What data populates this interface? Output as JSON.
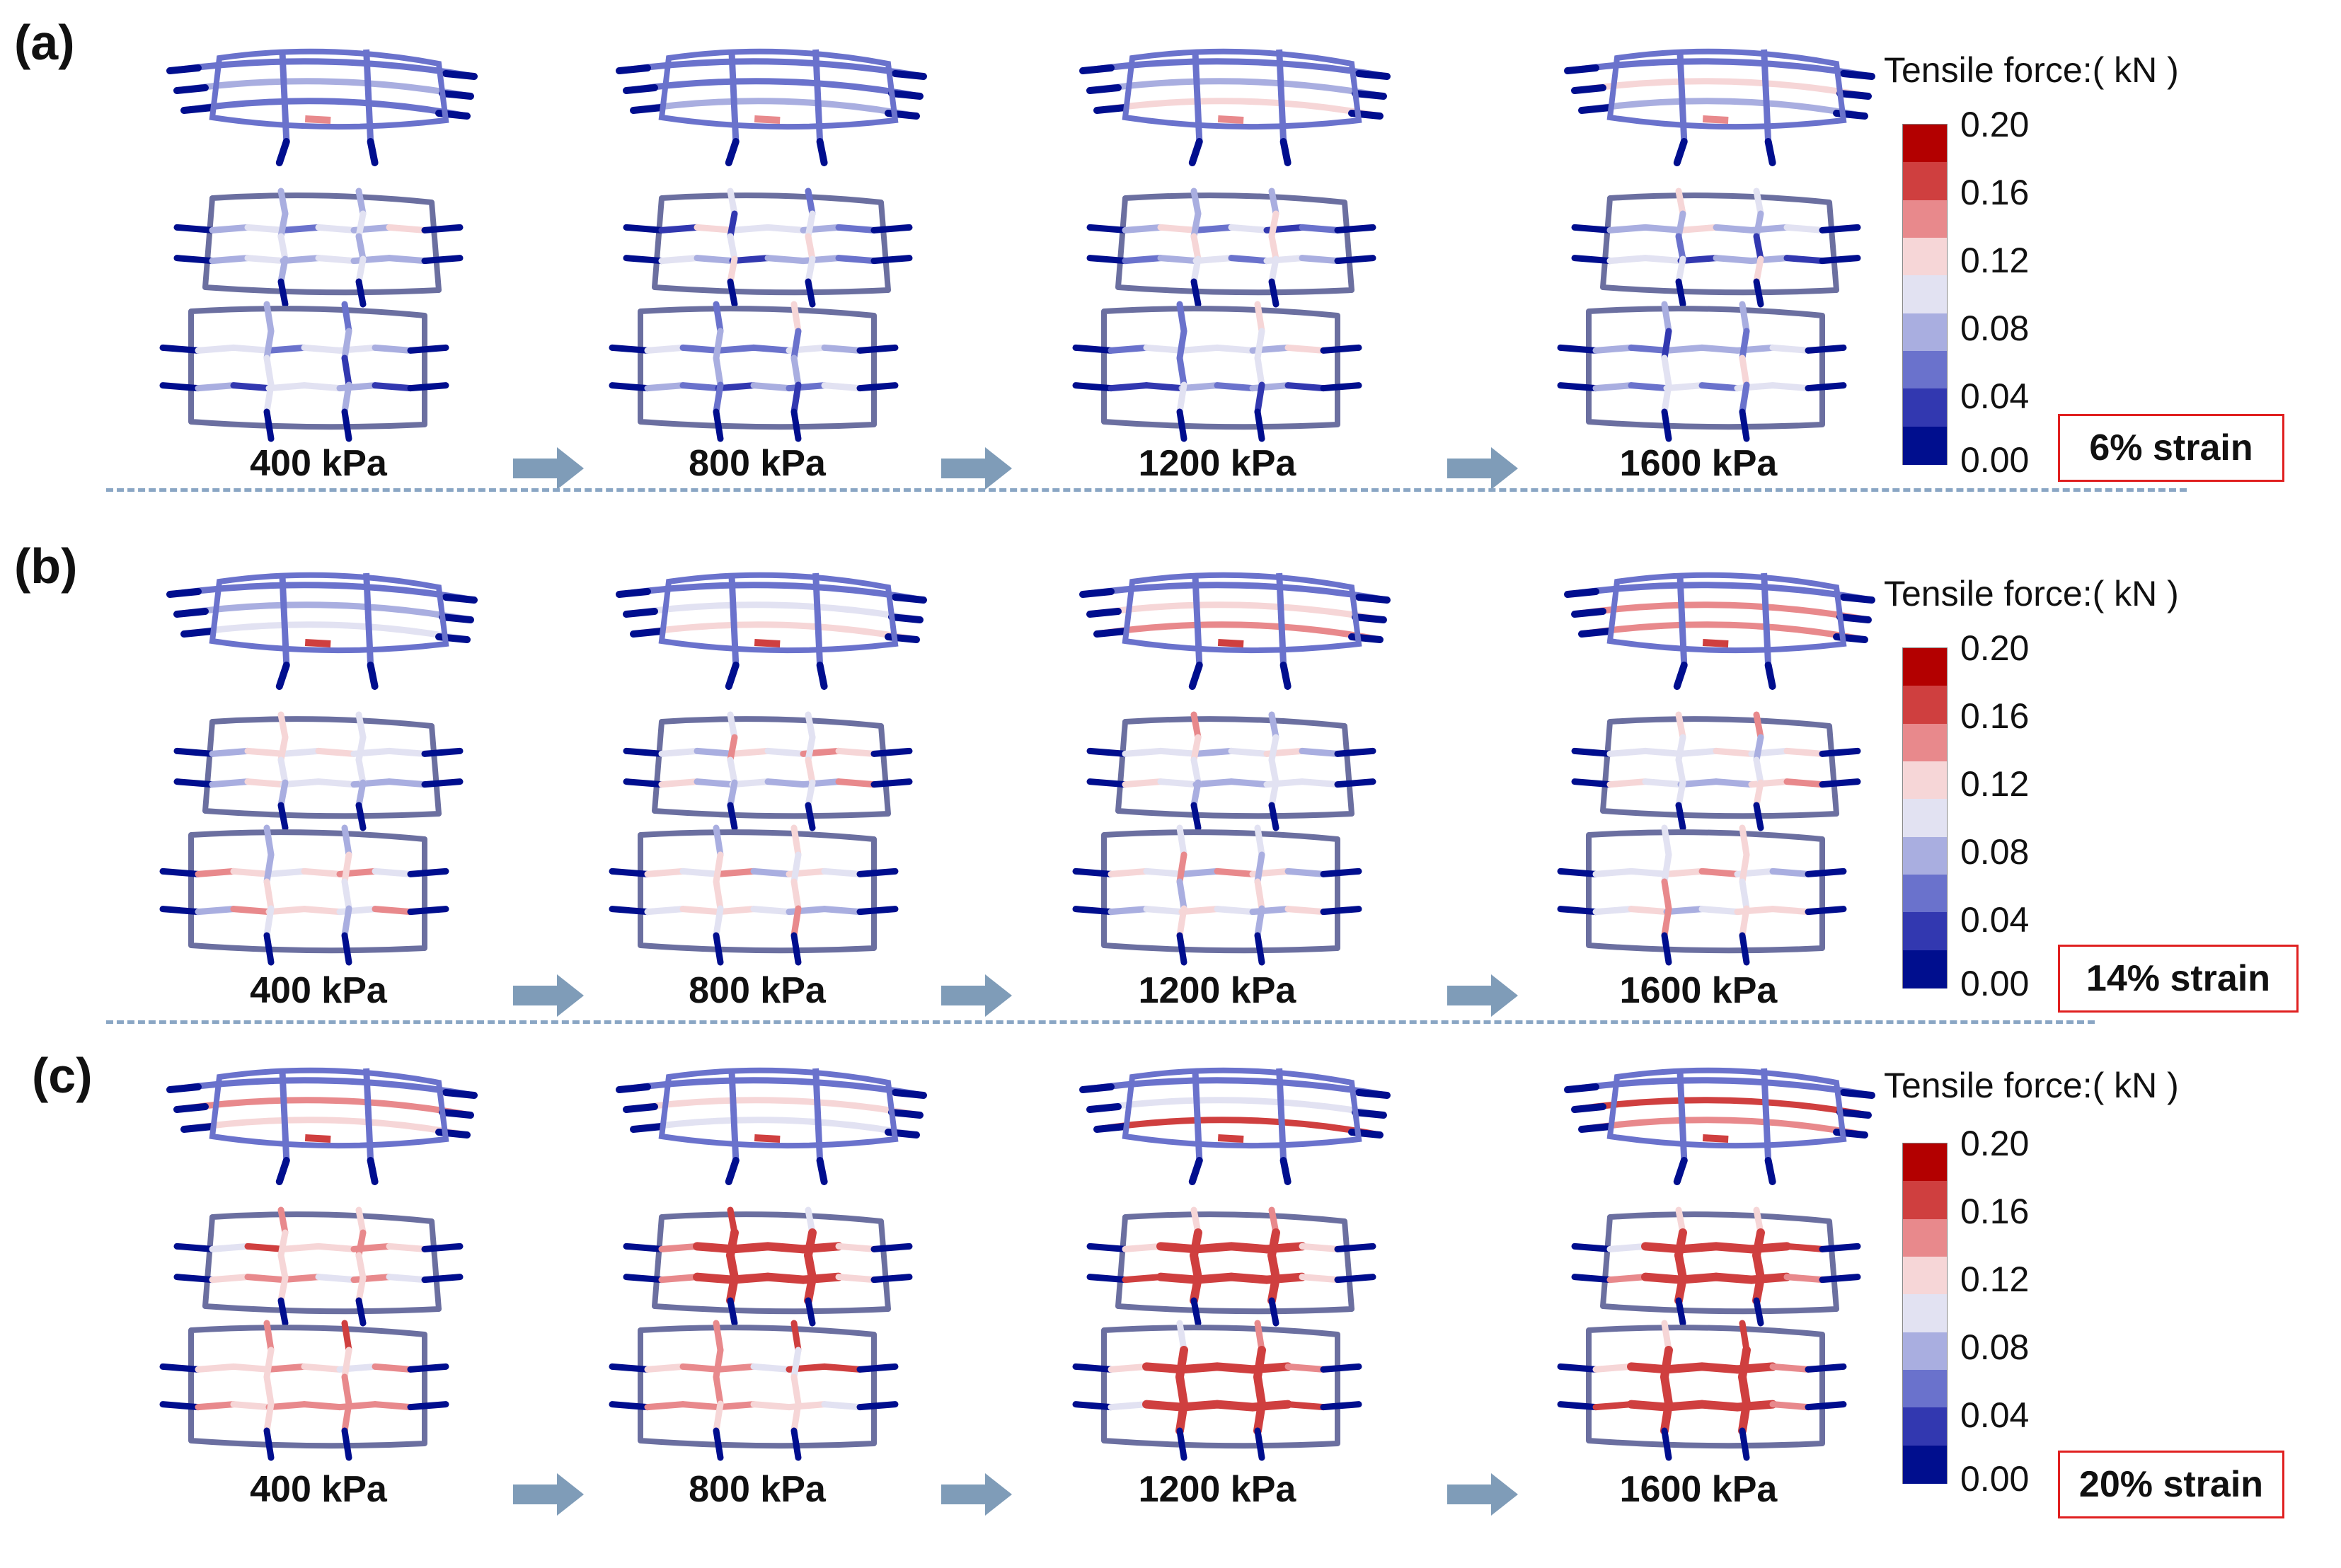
{
  "legend": {
    "title": "Tensile force:( kN )",
    "ticks": [
      "0.20",
      "0.16",
      "0.12",
      "0.08",
      "0.04",
      "0.00"
    ],
    "colors": [
      "#b30000",
      "#cf3f3f",
      "#e8898c",
      "#f6d6d7",
      "#e2e2f2",
      "#a9aee0",
      "#6a72cc",
      "#3238b0",
      "#000e8e"
    ]
  },
  "panels": [
    {
      "label": "(a)",
      "strain": "6% strain",
      "pressures": [
        "400 kPa",
        "800 kPa",
        "1200 kPa",
        "1600 kPa"
      ],
      "force_level": "low"
    },
    {
      "label": "(b)",
      "strain": "14% strain",
      "pressures": [
        "400 kPa",
        "800 kPa",
        "1200 kPa",
        "1600 kPa"
      ],
      "force_level": "medium"
    },
    {
      "label": "(c)",
      "strain": "20% strain",
      "pressures": [
        "400 kPa",
        "800 kPa",
        "1200 kPa",
        "1600 kPa"
      ],
      "force_level": "high"
    }
  ],
  "colors": {
    "arrow": "#7f9cb8",
    "separator": "#8aa6c4",
    "strain_box_border": "#e02020",
    "mesh_base": "#c8c8dc",
    "mesh_outline": "#6b6fa0"
  }
}
